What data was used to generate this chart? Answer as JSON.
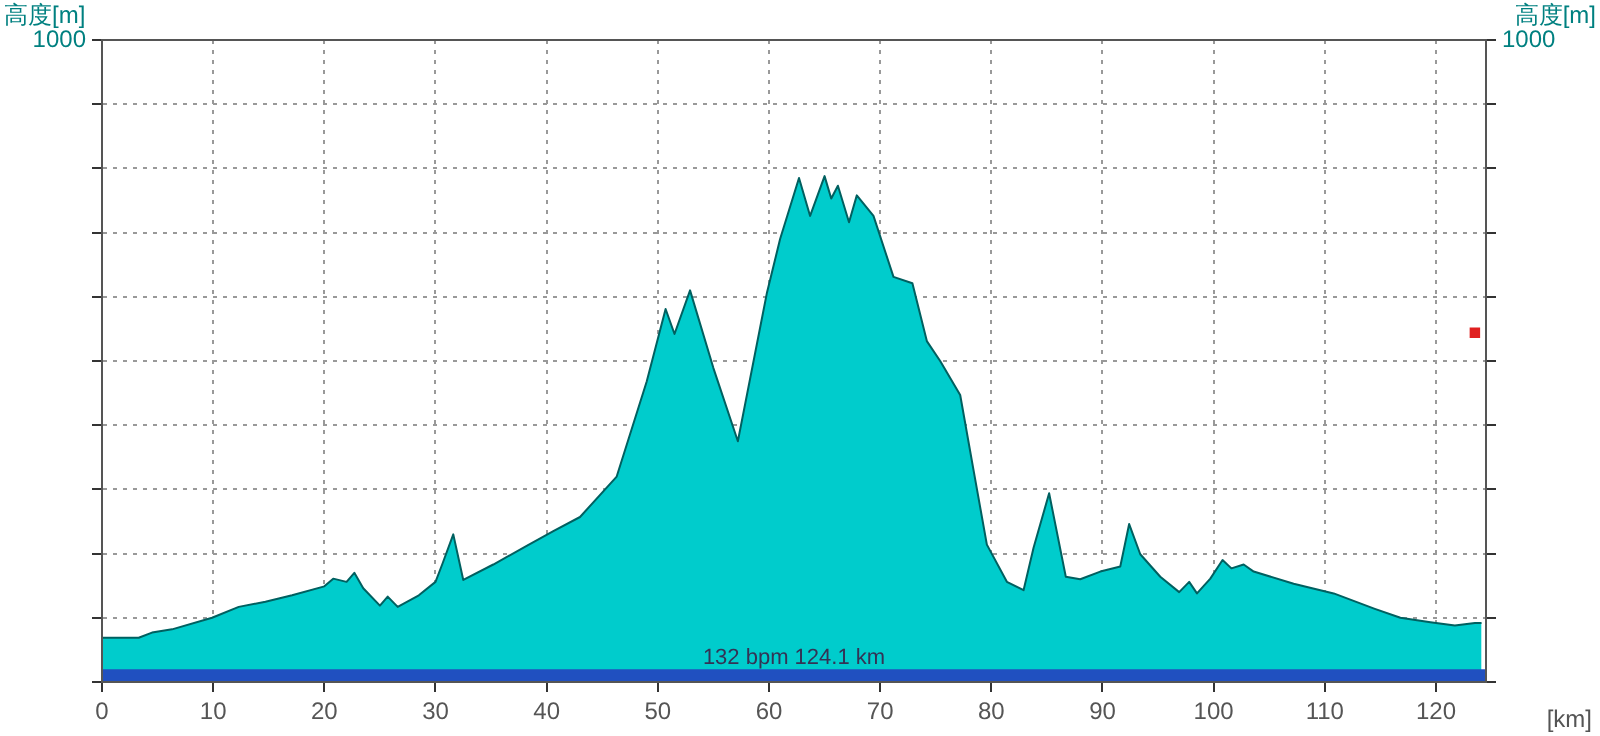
{
  "chart_data": {
    "type": "area",
    "xlabel": "[km]",
    "ylabel": "高度[m]",
    "y2label": "高度[m]",
    "xlim": [
      0,
      124.5
    ],
    "xticks": [
      0,
      10,
      20,
      30,
      40,
      50,
      60,
      70,
      80,
      90,
      100,
      110,
      120
    ],
    "ylim": [
      0,
      1000
    ],
    "yticks": [
      {
        "value": 0,
        "label": null
      },
      {
        "value": 100,
        "label": null
      },
      {
        "value": 200,
        "label": null
      },
      {
        "value": 300,
        "label": null
      },
      {
        "value": 400,
        "label": null
      },
      {
        "value": 500,
        "label": null
      },
      {
        "value": 600,
        "label": null
      },
      {
        "value": 700,
        "label": null
      },
      {
        "value": 800,
        "label": null
      },
      {
        "value": 900,
        "label": null
      },
      1000
    ],
    "annotations": [
      "1000"
    ],
    "grid": true,
    "legend": false,
    "bands": [
      {
        "axis": "y",
        "from": 0,
        "to": 20,
        "label": "132 bpm 124.1 km",
        "color": "#2050c0"
      }
    ],
    "series": [
      {
        "color": "#00cccc",
        "x": [
          0,
          3.3,
          4.5,
          6.3,
          9.9,
          12.3,
          14.7,
          17.1,
          20,
          20.8,
          22,
          22.7,
          23.5,
          25,
          25.7,
          26.6,
          28.5,
          30,
          30.6,
          31.6,
          32.5,
          35.2,
          38.2,
          40.6,
          43,
          46.3,
          49,
          50.7,
          51.5,
          52.9,
          55,
          57.2,
          59.8,
          61,
          62.7,
          63.7,
          65,
          65.6,
          66.2,
          67.2,
          67.9,
          69.4,
          71.2,
          72.9,
          74.2,
          75.4,
          77.2,
          78.4,
          79.6,
          81.4,
          82.9,
          83.8,
          85.2,
          86.7,
          88,
          89.8,
          91.6,
          92.4,
          93.4,
          95.2,
          96.9,
          97.8,
          98.5,
          99.7,
          100.8,
          101.6,
          102.7,
          103.6,
          107.2,
          110.8,
          114.5,
          116.8,
          119.5,
          121.7,
          123.5,
          124.1
        ],
        "values": [
          69,
          69,
          77,
          82,
          100,
          117,
          125,
          135,
          149,
          161,
          156,
          170,
          146,
          119,
          133,
          117,
          135,
          156,
          183,
          230,
          159,
          183,
          212,
          235,
          257,
          320,
          468,
          581,
          542,
          610,
          489,
          375,
          605,
          690,
          785,
          726,
          788,
          753,
          773,
          716,
          758,
          726,
          631,
          621,
          531,
          500,
          447,
          330,
          214,
          156,
          143,
          209,
          294,
          164,
          160,
          172,
          180,
          246,
          199,
          164,
          140,
          156,
          138,
          161,
          190,
          177,
          183,
          172,
          153,
          138,
          114,
          100,
          93,
          88,
          92,
          92
        ]
      },
      {
        "type": "scatter",
        "color": "#e02020",
        "marker": "square",
        "x": [
          123.5
        ],
        "values": [
          544
        ]
      }
    ]
  }
}
